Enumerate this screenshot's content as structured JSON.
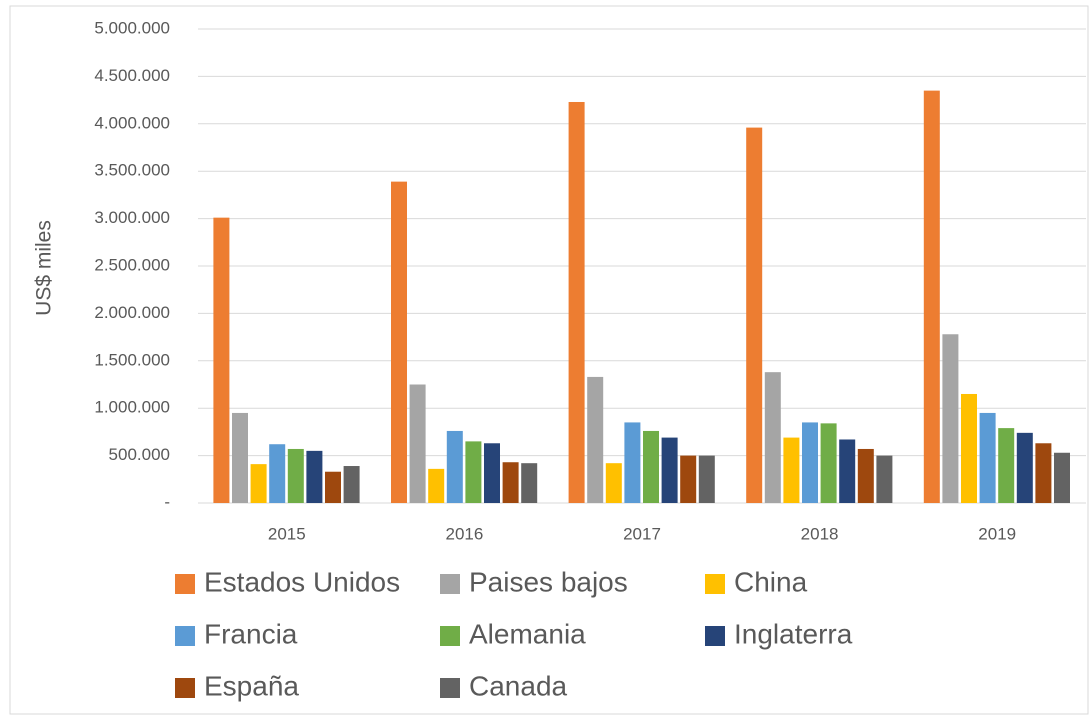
{
  "chart_data": {
    "type": "bar",
    "y_label": "US$ miles",
    "categories": [
      "2015",
      "2016",
      "2017",
      "2018",
      "2019"
    ],
    "series": [
      {
        "name": "Estados Unidos",
        "color": "#ed7d31",
        "values": [
          3010000,
          3390000,
          4230000,
          3960000,
          4350000
        ]
      },
      {
        "name": "Paises bajos",
        "color": "#a5a5a5",
        "values": [
          950000,
          1250000,
          1330000,
          1380000,
          1780000
        ]
      },
      {
        "name": "China",
        "color": "#ffc000",
        "values": [
          410000,
          360000,
          420000,
          690000,
          1150000
        ]
      },
      {
        "name": "Francia",
        "color": "#5b9bd5",
        "values": [
          620000,
          760000,
          850000,
          850000,
          950000
        ]
      },
      {
        "name": "Alemania",
        "color": "#70ad47",
        "values": [
          570000,
          650000,
          760000,
          840000,
          790000
        ]
      },
      {
        "name": "Inglaterra",
        "color": "#264478",
        "values": [
          550000,
          630000,
          690000,
          670000,
          740000
        ]
      },
      {
        "name": "España",
        "color": "#9e480e",
        "values": [
          330000,
          430000,
          500000,
          570000,
          630000
        ]
      },
      {
        "name": "Canada",
        "color": "#636363",
        "values": [
          390000,
          420000,
          500000,
          500000,
          530000
        ]
      }
    ],
    "ylim": [
      0,
      5000000
    ],
    "yticks": [
      {
        "value": 0,
        "label": "-"
      },
      {
        "value": 500000,
        "label": "500.000"
      },
      {
        "value": 1000000,
        "label": "1.000.000"
      },
      {
        "value": 1500000,
        "label": "1.500.000"
      },
      {
        "value": 2000000,
        "label": "2.000.000"
      },
      {
        "value": 2500000,
        "label": "2.500.000"
      },
      {
        "value": 3000000,
        "label": "3.000.000"
      },
      {
        "value": 3500000,
        "label": "3.500.000"
      },
      {
        "value": 4000000,
        "label": "4.000.000"
      },
      {
        "value": 4500000,
        "label": "4.500.000"
      },
      {
        "value": 5000000,
        "label": "5.000.000"
      }
    ],
    "grid": true,
    "legend": "bottom"
  }
}
